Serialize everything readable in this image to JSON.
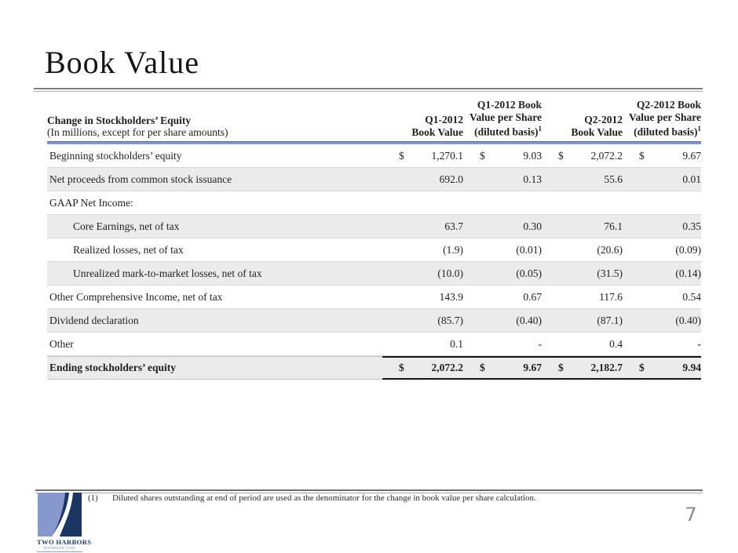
{
  "slide": {
    "title": "Book Value",
    "page_number": "7"
  },
  "colors": {
    "header_rule_blue": "#8296cb",
    "header_rule_blue_dark": "#54659f",
    "shaded_row": "#ebebeb",
    "logo_navy": "#1c3664",
    "logo_light_blue": "#8799cc",
    "page_number_gray": "#8c8c8c"
  },
  "table": {
    "currency_symbol": "$",
    "header": {
      "label_line1": "Change in Stockholders’ Equity",
      "label_line2": "(In millions, except for per share amounts)",
      "columns": [
        {
          "lines": [
            "Q1-2012",
            "Book Value"
          ],
          "sup": ""
        },
        {
          "lines": [
            "Q1-2012 Book",
            "Value per Share",
            "(diluted basis)"
          ],
          "sup": "1"
        },
        {
          "lines": [
            "Q2-2012",
            "Book Value"
          ],
          "sup": ""
        },
        {
          "lines": [
            "Q2-2012 Book",
            "Value per Share",
            "(diluted basis)"
          ],
          "sup": "1"
        }
      ]
    },
    "rows": [
      {
        "label": "Beginning stockholders’ equity",
        "indent": false,
        "shaded": false,
        "total": false,
        "dollar": true,
        "values": [
          "1,270.1",
          "9.03",
          "2,072.2",
          "9.67"
        ],
        "bold_cols": []
      },
      {
        "label": "Net proceeds from common stock issuance",
        "indent": false,
        "shaded": true,
        "total": false,
        "dollar": false,
        "values": [
          "692.0",
          "0.13",
          "55.6",
          "0.01"
        ],
        "bold_cols": []
      },
      {
        "label": "GAAP Net Income:",
        "indent": false,
        "shaded": false,
        "total": false,
        "dollar": false,
        "values": [
          "",
          "",
          "",
          ""
        ],
        "bold_cols": []
      },
      {
        "label": "Core Earnings, net of tax",
        "indent": true,
        "shaded": true,
        "total": false,
        "dollar": false,
        "values": [
          "63.7",
          "0.30",
          "76.1",
          "0.35"
        ],
        "bold_cols": []
      },
      {
        "label": "Realized losses, net of tax",
        "indent": true,
        "shaded": false,
        "total": false,
        "dollar": false,
        "values": [
          "(1.9)",
          "(0.01)",
          "(20.6)",
          "(0.09)"
        ],
        "bold_cols": []
      },
      {
        "label": "Unrealized mark-to-market losses, net of tax",
        "indent": true,
        "shaded": true,
        "total": false,
        "dollar": false,
        "values": [
          "(10.0)",
          "(0.05)",
          "(31.5)",
          "(0.14)"
        ],
        "bold_cols": []
      },
      {
        "label": "Other Comprehensive Income, net of tax",
        "indent": false,
        "shaded": false,
        "total": false,
        "dollar": false,
        "values": [
          "143.9",
          "0.67",
          "117.6",
          "0.54"
        ],
        "bold_cols": []
      },
      {
        "label": "Dividend declaration",
        "indent": false,
        "shaded": true,
        "total": false,
        "dollar": false,
        "values": [
          "(85.7)",
          "(0.40)",
          "(87.1)",
          "(0.40)"
        ],
        "bold_cols": []
      },
      {
        "label": "Other",
        "indent": false,
        "shaded": false,
        "total": false,
        "dollar": false,
        "values": [
          "0.1",
          "-",
          "0.4",
          "-"
        ],
        "bold_cols": [
          3
        ]
      },
      {
        "label": "Ending stockholders’ equity",
        "indent": false,
        "shaded": true,
        "total": true,
        "dollar": true,
        "values": [
          "2,072.2",
          "9.67",
          "2,182.7",
          "9.94"
        ],
        "bold_cols": []
      }
    ]
  },
  "footer": {
    "footnote_marker": "(1)",
    "footnote_text": "Diluted shares outstanding at end of period are used as the denominator for the change in book value per share calculation.",
    "logo_name": "TWO HARBORS",
    "logo_subname": "Investment Corp."
  }
}
